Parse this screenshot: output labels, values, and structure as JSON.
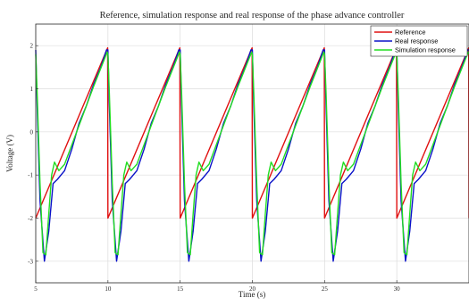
{
  "chart_data": {
    "type": "line",
    "title": "Reference, simulation response and real response of the phase advance controller",
    "xlabel": "Time (s)",
    "ylabel": "Voltage (V)",
    "xlim": [
      5,
      35
    ],
    "ylim": [
      -3.5,
      2.5
    ],
    "xticks": [
      5,
      10,
      15,
      20,
      25,
      30
    ],
    "yticks": [
      -3,
      -2,
      -1,
      0,
      1,
      2
    ],
    "grid": true,
    "legend_position": "top-right",
    "series": [
      {
        "name": "Reference",
        "color": "#e01010",
        "x": [
          5,
          9.98,
          10,
          14.98,
          15,
          19.98,
          20,
          24.98,
          25,
          29.98,
          30,
          34.98,
          35
        ],
        "y": [
          -2,
          1.95,
          -2,
          1.95,
          -2,
          1.95,
          -2,
          1.95,
          -2,
          1.95,
          -2,
          1.95,
          -2
        ]
      },
      {
        "name": "Real response",
        "color": "#0a12c8",
        "x": [
          5,
          5.1,
          5.3,
          5.6,
          5.9,
          6.2,
          6.5,
          7,
          7.5,
          8,
          8.5,
          9,
          9.5,
          9.9,
          10,
          10.1,
          10.3,
          10.6,
          10.9,
          11.2,
          11.5,
          12,
          12.5,
          13,
          13.5,
          14,
          14.5,
          14.9,
          15,
          15.1,
          15.3,
          15.6,
          15.9,
          16.2,
          16.5,
          17,
          17.5,
          18,
          18.5,
          19,
          19.5,
          19.9,
          20,
          20.1,
          20.3,
          20.6,
          20.9,
          21.2,
          21.5,
          22,
          22.5,
          23,
          23.5,
          24,
          24.5,
          24.9,
          25,
          25.1,
          25.3,
          25.6,
          25.9,
          26.2,
          26.5,
          27,
          27.5,
          28,
          28.5,
          29,
          29.5,
          29.9,
          30,
          30.1,
          30.3,
          30.6,
          30.9,
          31.2,
          31.5,
          32,
          32.5,
          33,
          33.5,
          34,
          34.5,
          34.9,
          35
        ],
        "y": [
          1.9,
          0.6,
          -1.6,
          -3.0,
          -2.3,
          -1.2,
          -1.1,
          -0.9,
          -0.4,
          0.2,
          0.6,
          1.1,
          1.5,
          1.9,
          1.9,
          0.6,
          -1.6,
          -3.0,
          -2.3,
          -1.2,
          -1.1,
          -0.9,
          -0.4,
          0.2,
          0.6,
          1.1,
          1.5,
          1.9,
          1.9,
          0.6,
          -1.6,
          -3.0,
          -2.3,
          -1.2,
          -1.1,
          -0.9,
          -0.4,
          0.2,
          0.6,
          1.1,
          1.5,
          1.9,
          1.9,
          0.6,
          -1.6,
          -3.0,
          -2.3,
          -1.2,
          -1.1,
          -0.9,
          -0.4,
          0.2,
          0.6,
          1.1,
          1.5,
          1.9,
          1.9,
          0.6,
          -1.6,
          -3.0,
          -2.3,
          -1.2,
          -1.1,
          -0.9,
          -0.4,
          0.2,
          0.6,
          1.1,
          1.5,
          1.9,
          1.9,
          0.6,
          -1.6,
          -3.0,
          -2.3,
          -1.2,
          -1.1,
          -0.9,
          -0.4,
          0.2,
          0.6,
          1.1,
          1.5,
          1.9,
          1.9
        ]
      },
      {
        "name": "Simulation response",
        "color": "#22dd22",
        "x": [
          5,
          5.1,
          5.3,
          5.5,
          5.7,
          5.9,
          6.1,
          6.3,
          6.6,
          7,
          8,
          9,
          9.95,
          10,
          10.1,
          10.3,
          10.5,
          10.7,
          10.9,
          11.1,
          11.3,
          11.6,
          12,
          13,
          14,
          14.95,
          15,
          15.1,
          15.3,
          15.5,
          15.7,
          15.9,
          16.1,
          16.3,
          16.6,
          17,
          18,
          19,
          19.95,
          20,
          20.1,
          20.3,
          20.5,
          20.7,
          20.9,
          21.1,
          21.3,
          21.6,
          22,
          23,
          24,
          24.95,
          25,
          25.1,
          25.3,
          25.5,
          25.7,
          25.9,
          26.1,
          26.3,
          26.6,
          27,
          28,
          29,
          29.95,
          30,
          30.1,
          30.3,
          30.5,
          30.7,
          30.9,
          31.1,
          31.3,
          31.6,
          32,
          33,
          34,
          34.95,
          35
        ],
        "y": [
          1.8,
          0.9,
          -1.2,
          -2.8,
          -2.85,
          -1.9,
          -1.0,
          -0.7,
          -0.9,
          -0.75,
          0.15,
          1.05,
          1.85,
          1.8,
          0.9,
          -1.2,
          -2.8,
          -2.85,
          -1.9,
          -1.0,
          -0.7,
          -0.9,
          -0.75,
          0.15,
          1.05,
          1.85,
          1.8,
          0.9,
          -1.2,
          -2.8,
          -2.85,
          -1.9,
          -1.0,
          -0.7,
          -0.9,
          -0.75,
          0.15,
          1.05,
          1.85,
          1.8,
          0.9,
          -1.2,
          -2.8,
          -2.85,
          -1.9,
          -1.0,
          -0.7,
          -0.9,
          -0.75,
          0.15,
          1.05,
          1.85,
          1.8,
          0.9,
          -1.2,
          -2.8,
          -2.85,
          -1.9,
          -1.0,
          -0.7,
          -0.9,
          -0.75,
          0.15,
          1.05,
          1.85,
          1.8,
          0.9,
          -1.2,
          -2.8,
          -2.85,
          -1.9,
          -1.0,
          -0.7,
          -0.9,
          -0.75,
          0.15,
          1.05,
          1.85,
          1.8
        ]
      }
    ]
  }
}
